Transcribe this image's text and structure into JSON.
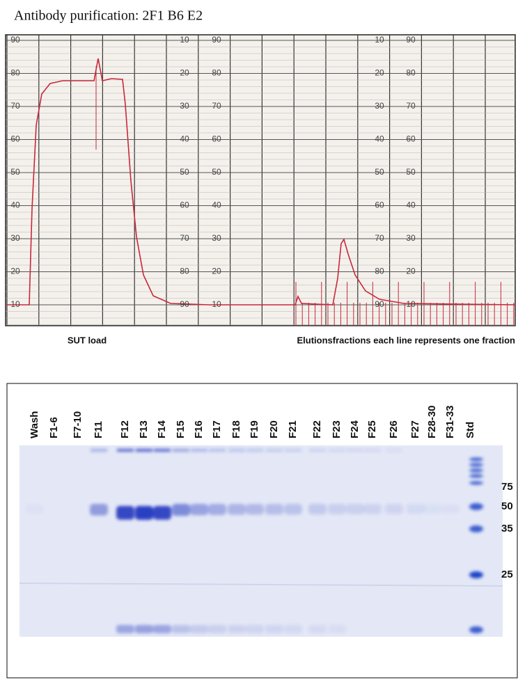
{
  "title": "Antibody purification: 2F1 B6 E2",
  "chromatogram": {
    "scale_columns": [
      [
        90,
        80,
        70,
        60,
        50,
        40,
        30,
        20,
        10
      ],
      [
        10,
        20,
        30,
        40,
        50,
        60,
        70,
        80,
        90
      ],
      [
        90,
        80,
        70,
        60,
        50,
        40,
        30,
        20,
        10
      ],
      [
        10,
        20,
        30,
        40,
        50,
        60,
        70,
        80,
        90
      ],
      [
        90,
        80,
        70,
        60,
        50,
        40,
        30,
        20,
        10
      ]
    ],
    "captions": [
      "SUT load",
      "Elutionsfractions each line represents one fraction"
    ]
  },
  "gel": {
    "lanes": [
      "Wash",
      "F1-6",
      "F7-10",
      "F11",
      "F12",
      "F13",
      "F14",
      "F15",
      "F16",
      "F17",
      "F18",
      "F19",
      "F20",
      "F21",
      "F22",
      "F23",
      "F24",
      "F25",
      "F26",
      "F27",
      "F28-30",
      "F31-33",
      "Std"
    ],
    "markers": [
      75,
      50,
      35,
      25
    ]
  }
}
